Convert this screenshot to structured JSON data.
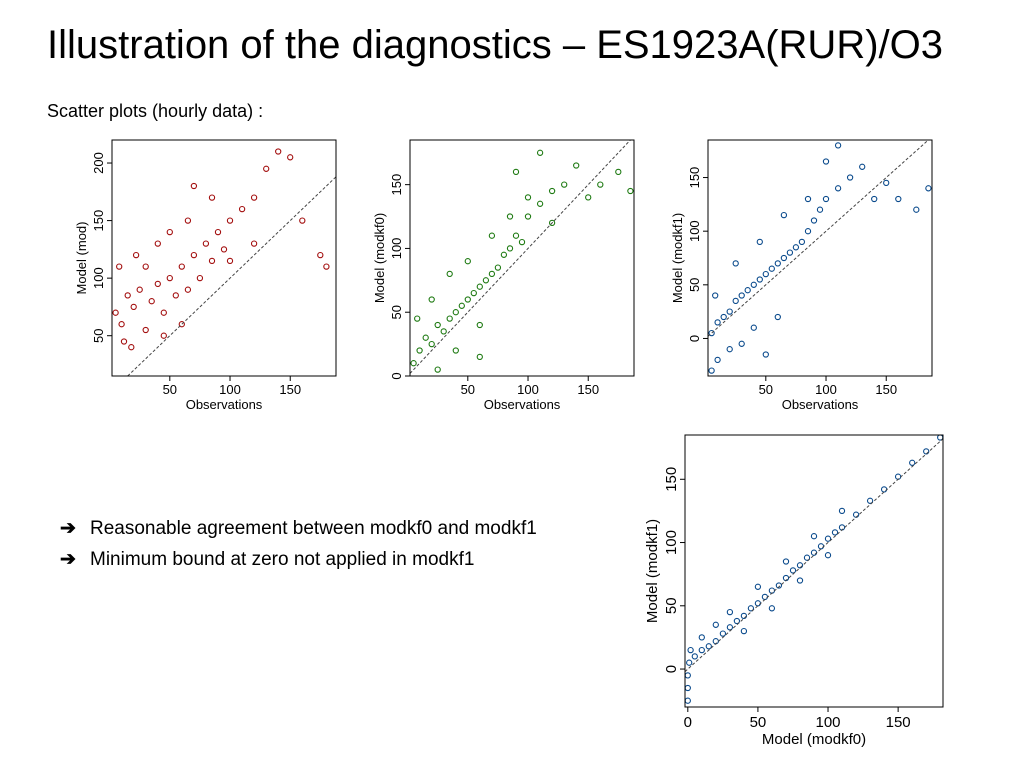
{
  "slide": {
    "title": "Illustration of the diagnostics – ES1923A(RUR)/O3",
    "subtitle": "Scatter plots (hourly data) :"
  },
  "bullets": [
    {
      "arrow": "➔",
      "text": "Reasonable agreement between modkf0 and modkf1"
    },
    {
      "arrow": "➔",
      "text": "Minimum bound at zero not applied in modkf1"
    }
  ],
  "colors": {
    "mod": "#a30e0e",
    "modkf0": "#1e7a12",
    "modkf1": "#0a4a8c",
    "reference_line": "#444444"
  },
  "chart_data": [
    {
      "type": "scatter",
      "xlabel": "Observations",
      "ylabel": "Model (mod)",
      "xlim": [
        2,
        188
      ],
      "ylim": [
        15,
        220
      ],
      "xticks": [
        50,
        100,
        150
      ],
      "yticks": [
        50,
        100,
        150,
        200
      ],
      "color": "#a30e0e",
      "reference_line": "1:1",
      "points": [
        [
          5,
          70
        ],
        [
          10,
          60
        ],
        [
          15,
          85
        ],
        [
          20,
          75
        ],
        [
          25,
          90
        ],
        [
          30,
          55
        ],
        [
          35,
          80
        ],
        [
          40,
          95
        ],
        [
          45,
          70
        ],
        [
          50,
          100
        ],
        [
          55,
          85
        ],
        [
          60,
          110
        ],
        [
          65,
          90
        ],
        [
          70,
          120
        ],
        [
          75,
          100
        ],
        [
          80,
          130
        ],
        [
          85,
          115
        ],
        [
          90,
          140
        ],
        [
          95,
          125
        ],
        [
          100,
          150
        ],
        [
          110,
          160
        ],
        [
          120,
          170
        ],
        [
          130,
          195
        ],
        [
          140,
          210
        ],
        [
          150,
          205
        ],
        [
          8,
          110
        ],
        [
          12,
          45
        ],
        [
          22,
          120
        ],
        [
          40,
          130
        ],
        [
          60,
          60
        ],
        [
          70,
          180
        ],
        [
          160,
          150
        ],
        [
          175,
          120
        ],
        [
          180,
          110
        ],
        [
          30,
          110
        ],
        [
          18,
          40
        ],
        [
          50,
          140
        ],
        [
          85,
          170
        ],
        [
          100,
          115
        ],
        [
          65,
          150
        ],
        [
          45,
          50
        ],
        [
          120,
          130
        ]
      ]
    },
    {
      "type": "scatter",
      "xlabel": "Observations",
      "ylabel": "Model (modkf0)",
      "xlim": [
        2,
        188
      ],
      "ylim": [
        0,
        185
      ],
      "xticks": [
        50,
        100,
        150
      ],
      "yticks": [
        0,
        50,
        100,
        150
      ],
      "color": "#1e7a12",
      "reference_line": "1:1",
      "points": [
        [
          5,
          10
        ],
        [
          10,
          20
        ],
        [
          15,
          30
        ],
        [
          20,
          25
        ],
        [
          25,
          40
        ],
        [
          30,
          35
        ],
        [
          35,
          45
        ],
        [
          40,
          50
        ],
        [
          45,
          55
        ],
        [
          50,
          60
        ],
        [
          55,
          65
        ],
        [
          60,
          70
        ],
        [
          65,
          75
        ],
        [
          70,
          80
        ],
        [
          75,
          85
        ],
        [
          80,
          95
        ],
        [
          85,
          100
        ],
        [
          90,
          110
        ],
        [
          95,
          105
        ],
        [
          100,
          125
        ],
        [
          110,
          135
        ],
        [
          120,
          145
        ],
        [
          130,
          150
        ],
        [
          140,
          165
        ],
        [
          150,
          140
        ],
        [
          160,
          150
        ],
        [
          175,
          160
        ],
        [
          185,
          145
        ],
        [
          8,
          45
        ],
        [
          20,
          60
        ],
        [
          35,
          80
        ],
        [
          50,
          90
        ],
        [
          60,
          40
        ],
        [
          70,
          110
        ],
        [
          85,
          125
        ],
        [
          100,
          140
        ],
        [
          120,
          120
        ],
        [
          40,
          20
        ],
        [
          60,
          15
        ],
        [
          25,
          5
        ],
        [
          90,
          160
        ],
        [
          110,
          175
        ]
      ]
    },
    {
      "type": "scatter",
      "xlabel": "Observations",
      "ylabel": "Model (modkf1)",
      "xlim": [
        2,
        188
      ],
      "ylim": [
        -35,
        185
      ],
      "xticks": [
        50,
        100,
        150
      ],
      "yticks": [
        0,
        50,
        100,
        150
      ],
      "color": "#0a4a8c",
      "reference_line": "1:1",
      "points": [
        [
          5,
          5
        ],
        [
          10,
          15
        ],
        [
          15,
          20
        ],
        [
          20,
          25
        ],
        [
          25,
          35
        ],
        [
          30,
          40
        ],
        [
          35,
          45
        ],
        [
          40,
          50
        ],
        [
          45,
          55
        ],
        [
          50,
          60
        ],
        [
          55,
          65
        ],
        [
          60,
          70
        ],
        [
          65,
          75
        ],
        [
          70,
          80
        ],
        [
          75,
          85
        ],
        [
          80,
          90
        ],
        [
          85,
          100
        ],
        [
          90,
          110
        ],
        [
          95,
          120
        ],
        [
          100,
          130
        ],
        [
          110,
          140
        ],
        [
          120,
          150
        ],
        [
          130,
          160
        ],
        [
          140,
          130
        ],
        [
          150,
          145
        ],
        [
          160,
          130
        ],
        [
          175,
          120
        ],
        [
          185,
          140
        ],
        [
          5,
          -30
        ],
        [
          10,
          -20
        ],
        [
          20,
          -10
        ],
        [
          30,
          -5
        ],
        [
          40,
          10
        ],
        [
          50,
          -15
        ],
        [
          60,
          20
        ],
        [
          8,
          40
        ],
        [
          25,
          70
        ],
        [
          45,
          90
        ],
        [
          65,
          115
        ],
        [
          85,
          130
        ],
        [
          100,
          165
        ],
        [
          110,
          180
        ]
      ]
    },
    {
      "type": "scatter",
      "xlabel": "Model (modkf0)",
      "ylabel": "Model (modkf1)",
      "xlim": [
        -2,
        182
      ],
      "ylim": [
        -30,
        185
      ],
      "xticks": [
        0,
        50,
        100,
        150
      ],
      "yticks": [
        0,
        50,
        100,
        150
      ],
      "color": "#0a4a8c",
      "reference_line": "1:1",
      "points": [
        [
          0,
          -25
        ],
        [
          0,
          -15
        ],
        [
          0,
          -5
        ],
        [
          1,
          5
        ],
        [
          2,
          15
        ],
        [
          5,
          10
        ],
        [
          10,
          15
        ],
        [
          15,
          18
        ],
        [
          20,
          22
        ],
        [
          25,
          28
        ],
        [
          30,
          33
        ],
        [
          35,
          38
        ],
        [
          40,
          42
        ],
        [
          45,
          48
        ],
        [
          50,
          52
        ],
        [
          55,
          57
        ],
        [
          60,
          62
        ],
        [
          65,
          66
        ],
        [
          70,
          72
        ],
        [
          75,
          78
        ],
        [
          80,
          82
        ],
        [
          85,
          88
        ],
        [
          90,
          92
        ],
        [
          95,
          97
        ],
        [
          100,
          103
        ],
        [
          105,
          108
        ],
        [
          110,
          112
        ],
        [
          120,
          122
        ],
        [
          130,
          133
        ],
        [
          140,
          142
        ],
        [
          150,
          152
        ],
        [
          160,
          163
        ],
        [
          170,
          172
        ],
        [
          180,
          183
        ],
        [
          10,
          25
        ],
        [
          20,
          35
        ],
        [
          30,
          45
        ],
        [
          40,
          30
        ],
        [
          50,
          65
        ],
        [
          60,
          48
        ],
        [
          70,
          85
        ],
        [
          80,
          70
        ],
        [
          90,
          105
        ],
        [
          100,
          90
        ],
        [
          110,
          125
        ]
      ]
    }
  ]
}
